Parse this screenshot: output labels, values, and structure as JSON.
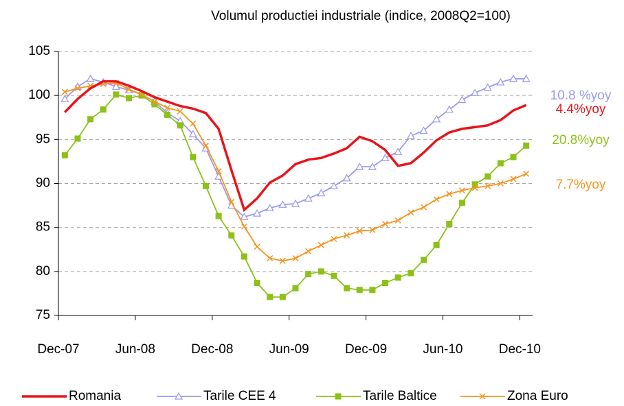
{
  "chart_data": {
    "type": "line",
    "title": "Volumul productiei industriale (indice, 2008Q2=100)",
    "categories": [
      "Dec-07",
      null,
      null,
      null,
      null,
      null,
      "Jun-08",
      null,
      null,
      null,
      null,
      null,
      "Dec-08",
      null,
      null,
      null,
      null,
      null,
      "Jun-09",
      null,
      null,
      null,
      null,
      null,
      "Dec-09",
      null,
      null,
      null,
      null,
      null,
      "Jun-10",
      null,
      null,
      null,
      null,
      null,
      "Dec-10"
    ],
    "ylim": [
      75,
      105
    ],
    "yticks": [
      75,
      80,
      85,
      90,
      95,
      100,
      105
    ],
    "grid": true,
    "legend": "bottom",
    "series": [
      {
        "name": "Romania",
        "color": "#e8141b",
        "marker": "none",
        "end_label": "4.4%yoy",
        "values": [
          98.1,
          99.6,
          100.8,
          101.6,
          101.6,
          101.1,
          100.5,
          99.8,
          99.3,
          98.8,
          98.5,
          98.0,
          96.2,
          91.5,
          87.0,
          88.3,
          90.1,
          90.9,
          92.2,
          92.7,
          92.9,
          93.4,
          94.0,
          95.3,
          94.8,
          93.8,
          92.0,
          92.3,
          93.5,
          94.9,
          95.8,
          96.2,
          96.4,
          96.6,
          97.2,
          98.3,
          98.9
        ]
      },
      {
        "name": "Tarile CEE 4",
        "color": "#9999ee",
        "marker": "triangle",
        "end_label": "10.8 %yoy",
        "values": [
          99.6,
          101.0,
          101.9,
          101.5,
          101.0,
          100.6,
          100.1,
          99.3,
          98.0,
          97.1,
          95.6,
          94.0,
          90.8,
          87.5,
          86.2,
          86.6,
          87.2,
          87.6,
          87.7,
          88.3,
          88.9,
          89.7,
          90.6,
          91.9,
          91.9,
          92.9,
          93.6,
          95.4,
          96.0,
          97.3,
          98.4,
          99.5,
          100.3,
          100.9,
          101.5,
          101.9,
          101.9
        ]
      },
      {
        "name": "Tarile Baltice",
        "color": "#8cc118",
        "marker": "square",
        "end_label": "20.8%yoy",
        "values": [
          93.2,
          95.1,
          97.3,
          98.4,
          100.1,
          99.7,
          100.0,
          99.0,
          97.8,
          96.6,
          93.0,
          89.7,
          86.3,
          84.1,
          81.7,
          78.7,
          77.1,
          77.1,
          78.1,
          79.7,
          80.0,
          79.5,
          78.1,
          77.9,
          77.9,
          78.7,
          79.3,
          79.8,
          81.3,
          83.0,
          85.4,
          87.8,
          89.9,
          90.8,
          92.3,
          93.0,
          94.3
        ]
      },
      {
        "name": "Zona Euro",
        "color": "#f7941d",
        "marker": "x",
        "end_label": "7.7%yoy",
        "values": [
          100.4,
          100.8,
          101.1,
          101.3,
          101.4,
          100.7,
          100.1,
          99.3,
          98.6,
          98.2,
          96.8,
          94.3,
          91.4,
          87.9,
          85.1,
          82.8,
          81.5,
          81.2,
          81.5,
          82.3,
          83.0,
          83.7,
          84.1,
          84.6,
          84.7,
          85.4,
          85.8,
          86.7,
          87.3,
          88.2,
          88.8,
          89.2,
          89.5,
          89.7,
          90.0,
          90.5,
          91.1
        ]
      }
    ]
  }
}
